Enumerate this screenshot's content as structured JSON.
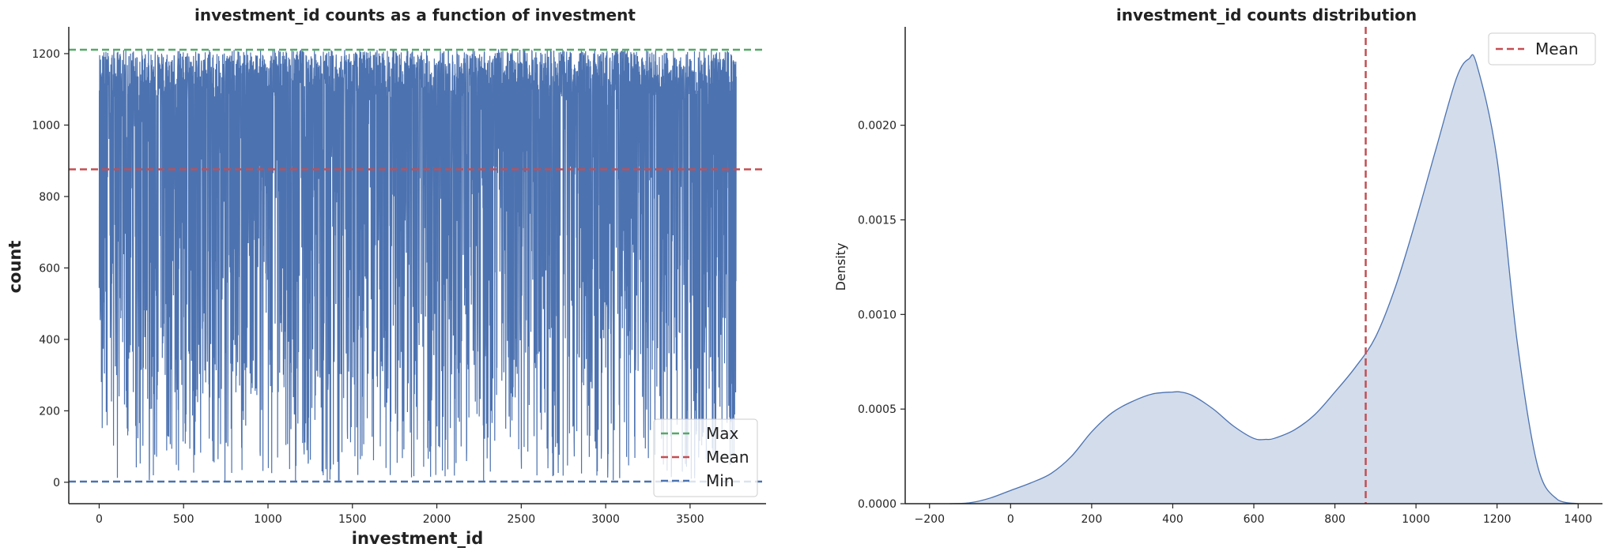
{
  "chart_data": [
    {
      "type": "line",
      "title": "investment_id counts as a function of investment",
      "xlabel": "investment_id",
      "ylabel": "count",
      "xlim": [
        -180,
        3950
      ],
      "ylim": [
        -60,
        1275
      ],
      "x_ticks": [
        0,
        500,
        1000,
        1500,
        2000,
        2500,
        3000,
        3500
      ],
      "y_ticks": [
        0,
        200,
        400,
        600,
        800,
        1000,
        1200
      ],
      "series": [
        {
          "name": "count",
          "color": "#4c72b0",
          "x_range": [
            0,
            3773
          ],
          "value_range": [
            2,
            1211
          ]
        }
      ],
      "hlines": [
        {
          "name": "Max",
          "value": 1211,
          "color": "#55a868",
          "style": "dashed"
        },
        {
          "name": "Mean",
          "value": 876,
          "color": "#c44e52",
          "style": "dashed"
        },
        {
          "name": "Min",
          "value": 2,
          "color": "#4c72b0",
          "style": "dashed"
        }
      ],
      "legend": {
        "position": "lower-right",
        "entries": [
          "Max",
          "Mean",
          "Min"
        ]
      },
      "grid": false
    },
    {
      "type": "area",
      "title": "investment_id counts distribution",
      "xlabel": "",
      "ylabel": "Density",
      "xlim": [
        -260,
        1460
      ],
      "ylim": [
        0,
        0.00252
      ],
      "x_ticks": [
        -200,
        0,
        200,
        400,
        600,
        800,
        1000,
        1200,
        1400
      ],
      "y_ticks": [
        "0.0000",
        "0.0005",
        "0.0010",
        "0.0015",
        "0.0020"
      ],
      "y_tick_values": [
        0,
        0.0005,
        0.001,
        0.0015,
        0.002
      ],
      "x": [
        -150,
        -100,
        -50,
        0,
        50,
        100,
        150,
        200,
        250,
        300,
        350,
        400,
        420,
        450,
        500,
        550,
        600,
        630,
        650,
        700,
        750,
        800,
        850,
        900,
        950,
        1000,
        1050,
        1100,
        1130,
        1150,
        1200,
        1250,
        1300,
        1350,
        1400
      ],
      "values": [
        0,
        5e-06,
        3e-05,
        7e-05,
        0.00011,
        0.00016,
        0.00025,
        0.00038,
        0.00048,
        0.00054,
        0.00058,
        0.00059,
        0.00059,
        0.00057,
        0.0005,
        0.00041,
        0.000345,
        0.00034,
        0.000345,
        0.00039,
        0.00047,
        0.00059,
        0.00072,
        0.00088,
        0.00115,
        0.0015,
        0.00188,
        0.00225,
        0.00235,
        0.00232,
        0.00182,
        0.00085,
        0.0002,
        2e-05,
        0
      ],
      "color": "#4c72b0",
      "vlines": [
        {
          "name": "Mean",
          "value": 876,
          "color": "#c44e52",
          "style": "dashed"
        }
      ],
      "legend": {
        "position": "top-right",
        "entries": [
          "Mean"
        ]
      },
      "grid": false
    }
  ]
}
